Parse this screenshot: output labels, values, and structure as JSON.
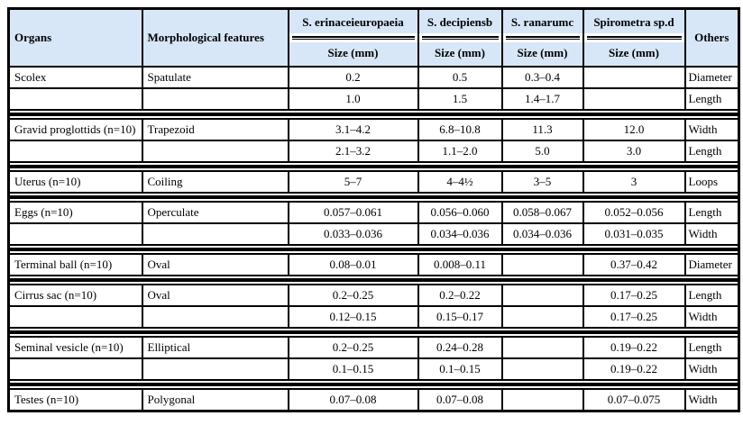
{
  "table": {
    "colors": {
      "header_bg": "#d7e7f7",
      "border": "#000000",
      "body_bg": "#ffffff"
    },
    "header": {
      "organs": "Organs",
      "morphological": "Morphological features",
      "species": [
        "S. erinaceieuropaeia",
        "S. decipiensb",
        "S. ranarumc",
        "Spirometra sp.d"
      ],
      "size_label": "Size (mm)",
      "others": "Others"
    },
    "groups": [
      {
        "rows": [
          {
            "organ": "Scolex",
            "feature": "Spatulate",
            "values": [
              "0.2",
              "0.5",
              "0.3–0.4",
              ""
            ],
            "other": "Diameter"
          },
          {
            "organ": "",
            "feature": "",
            "values": [
              "1.0",
              "1.5",
              "1.4–1.7",
              ""
            ],
            "other": "Length"
          }
        ]
      },
      {
        "rows": [
          {
            "organ": "Gravid proglottids (n=10)",
            "feature": "Trapezoid",
            "values": [
              "3.1–4.2",
              "6.8–10.8",
              "11.3",
              "12.0"
            ],
            "other": "Width"
          },
          {
            "organ": "",
            "feature": "",
            "values": [
              "2.1–3.2",
              "1.1–2.0",
              "5.0",
              "3.0"
            ],
            "other": "Length"
          }
        ]
      },
      {
        "rows": [
          {
            "organ": "Uterus (n=10)",
            "feature": "Coiling",
            "values": [
              "5–7",
              "4–4½",
              "3–5",
              "3"
            ],
            "other": "Loops"
          }
        ]
      },
      {
        "rows": [
          {
            "organ": "Eggs (n=10)",
            "feature": "Operculate",
            "values": [
              "0.057–0.061",
              "0.056–0.060",
              "0.058–0.067",
              "0.052–0.056"
            ],
            "other": "Length"
          },
          {
            "organ": "",
            "feature": "",
            "values": [
              "0.033–0.036",
              "0.034–0.036",
              "0.034–0.036",
              "0.031–0.035"
            ],
            "other": "Width"
          }
        ]
      },
      {
        "rows": [
          {
            "organ": "Terminal ball (n=10)",
            "feature": "Oval",
            "values": [
              "0.08–0.01",
              "0.008–0.11",
              "",
              "0.37–0.42"
            ],
            "other": "Diameter"
          }
        ]
      },
      {
        "rows": [
          {
            "organ": "Cirrus sac (n=10)",
            "feature": "Oval",
            "values": [
              "0.2–0.25",
              "0.2–0.22",
              "",
              "0.17–0.25"
            ],
            "other": "Length"
          },
          {
            "organ": "",
            "feature": "",
            "values": [
              "0.12–0.15",
              "0.15–0.17",
              "",
              "0.17–0.25"
            ],
            "other": "Width"
          }
        ]
      },
      {
        "rows": [
          {
            "organ": "Seminal vesicle (n=10)",
            "feature": "Elliptical",
            "values": [
              "0.2–0.25",
              "0.24–0.28",
              "",
              "0.19–0.22"
            ],
            "other": "Length"
          },
          {
            "organ": "",
            "feature": "",
            "values": [
              "0.1–0.15",
              "0.1–0.15",
              "",
              "0.19–0.22"
            ],
            "other": "Width"
          }
        ]
      },
      {
        "rows": [
          {
            "organ": "Testes (n=10)",
            "feature": "Polygonal",
            "values": [
              "0.07–0.08",
              "0.07–0.08",
              "",
              "0.07–0.075"
            ],
            "other": "Width"
          }
        ]
      }
    ]
  }
}
